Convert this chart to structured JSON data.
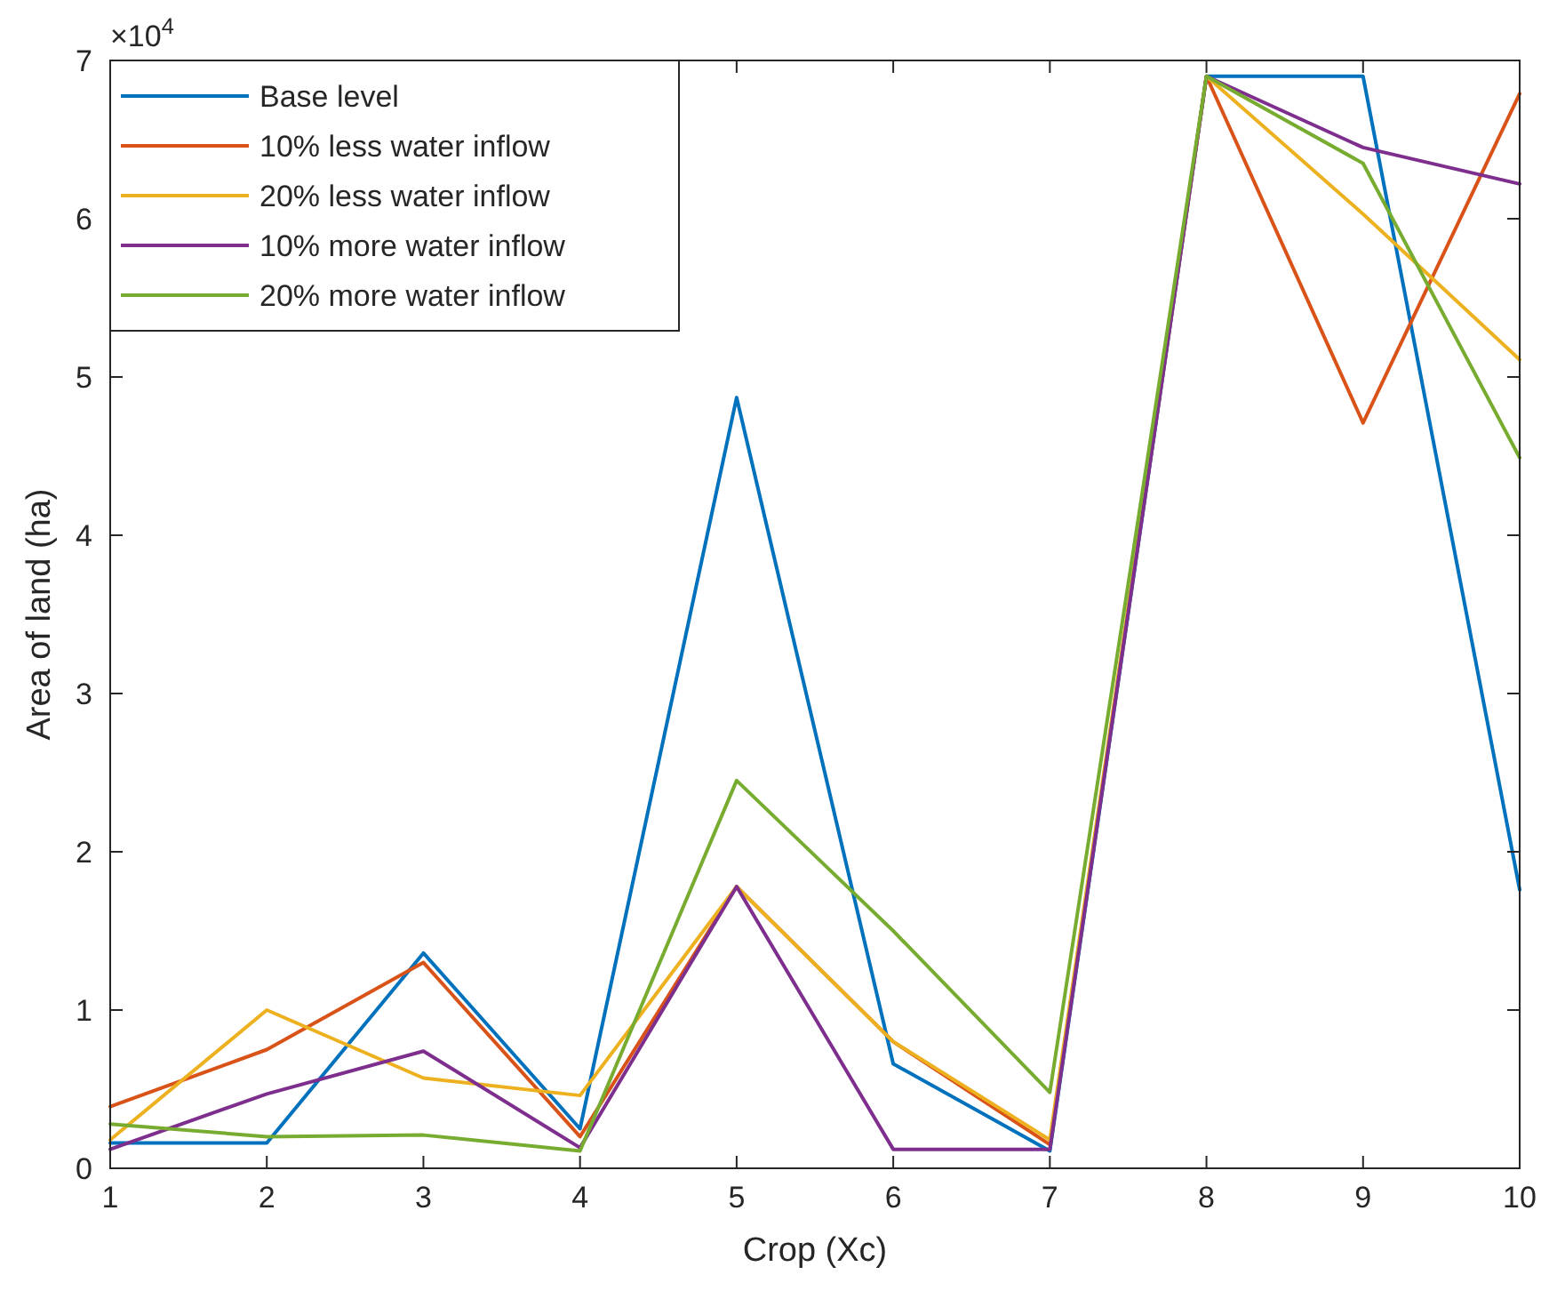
{
  "chart_data": {
    "type": "line",
    "xlabel": "Crop (Xc)",
    "ylabel": "Area of land (ha)",
    "annotations": [
      "×10$^{4}$"
    ],
    "x": [
      1,
      2,
      3,
      4,
      5,
      6,
      7,
      8,
      9,
      10
    ],
    "xlim": [
      1,
      10
    ],
    "xticks": [
      1,
      2,
      3,
      4,
      5,
      6,
      7,
      8,
      9,
      10
    ],
    "ylim": [
      0,
      7
    ],
    "yticks": [
      0,
      1,
      2,
      3,
      4,
      5,
      6,
      7
    ],
    "grid": false,
    "legend": "top left",
    "marker": "none",
    "line_style": "solid",
    "series": [
      {
        "name": "Base level",
        "color": "#0072bd",
        "values": [
          0.16,
          0.16,
          1.36,
          0.25,
          4.87,
          0.66,
          0.11,
          6.9,
          6.9,
          1.76
        ]
      },
      {
        "name": "10% less water inflow",
        "color": "#d95319",
        "values": [
          0.39,
          0.75,
          1.3,
          0.2,
          1.78,
          0.8,
          0.15,
          6.9,
          4.71,
          6.79
        ]
      },
      {
        "name": "20% less water inflow",
        "color": "#edb120",
        "values": [
          0.18,
          1.0,
          0.57,
          0.46,
          1.78,
          0.8,
          0.18,
          6.9,
          6.03,
          5.11
        ]
      },
      {
        "name": "10% more water inflow",
        "color": "#7e2f8e",
        "values": [
          0.12,
          0.47,
          0.74,
          0.13,
          1.78,
          0.12,
          0.12,
          6.9,
          6.45,
          6.22
        ]
      },
      {
        "name": "20% more water inflow",
        "color": "#77ac30",
        "values": [
          0.28,
          0.2,
          0.21,
          0.11,
          2.45,
          1.5,
          0.48,
          6.9,
          6.35,
          4.49
        ]
      }
    ]
  }
}
